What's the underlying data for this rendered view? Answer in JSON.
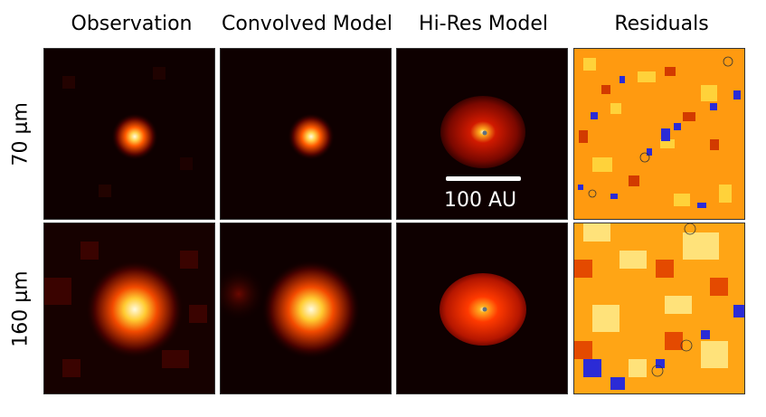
{
  "columns": {
    "observation": "Observation",
    "convolved": "Convolved Model",
    "hires": "Hi-Res Model",
    "residuals": "Residuals"
  },
  "rows": {
    "row1": "70 μm",
    "row2": "160 μm"
  },
  "scalebar": {
    "label": "100 AU"
  },
  "colors": {
    "background": "#0e0000",
    "source_core": "#fffbe0",
    "source_mid": "#ff6a00",
    "residual_low": "#2b2bd6",
    "residual_high": "#ffd23a"
  }
}
